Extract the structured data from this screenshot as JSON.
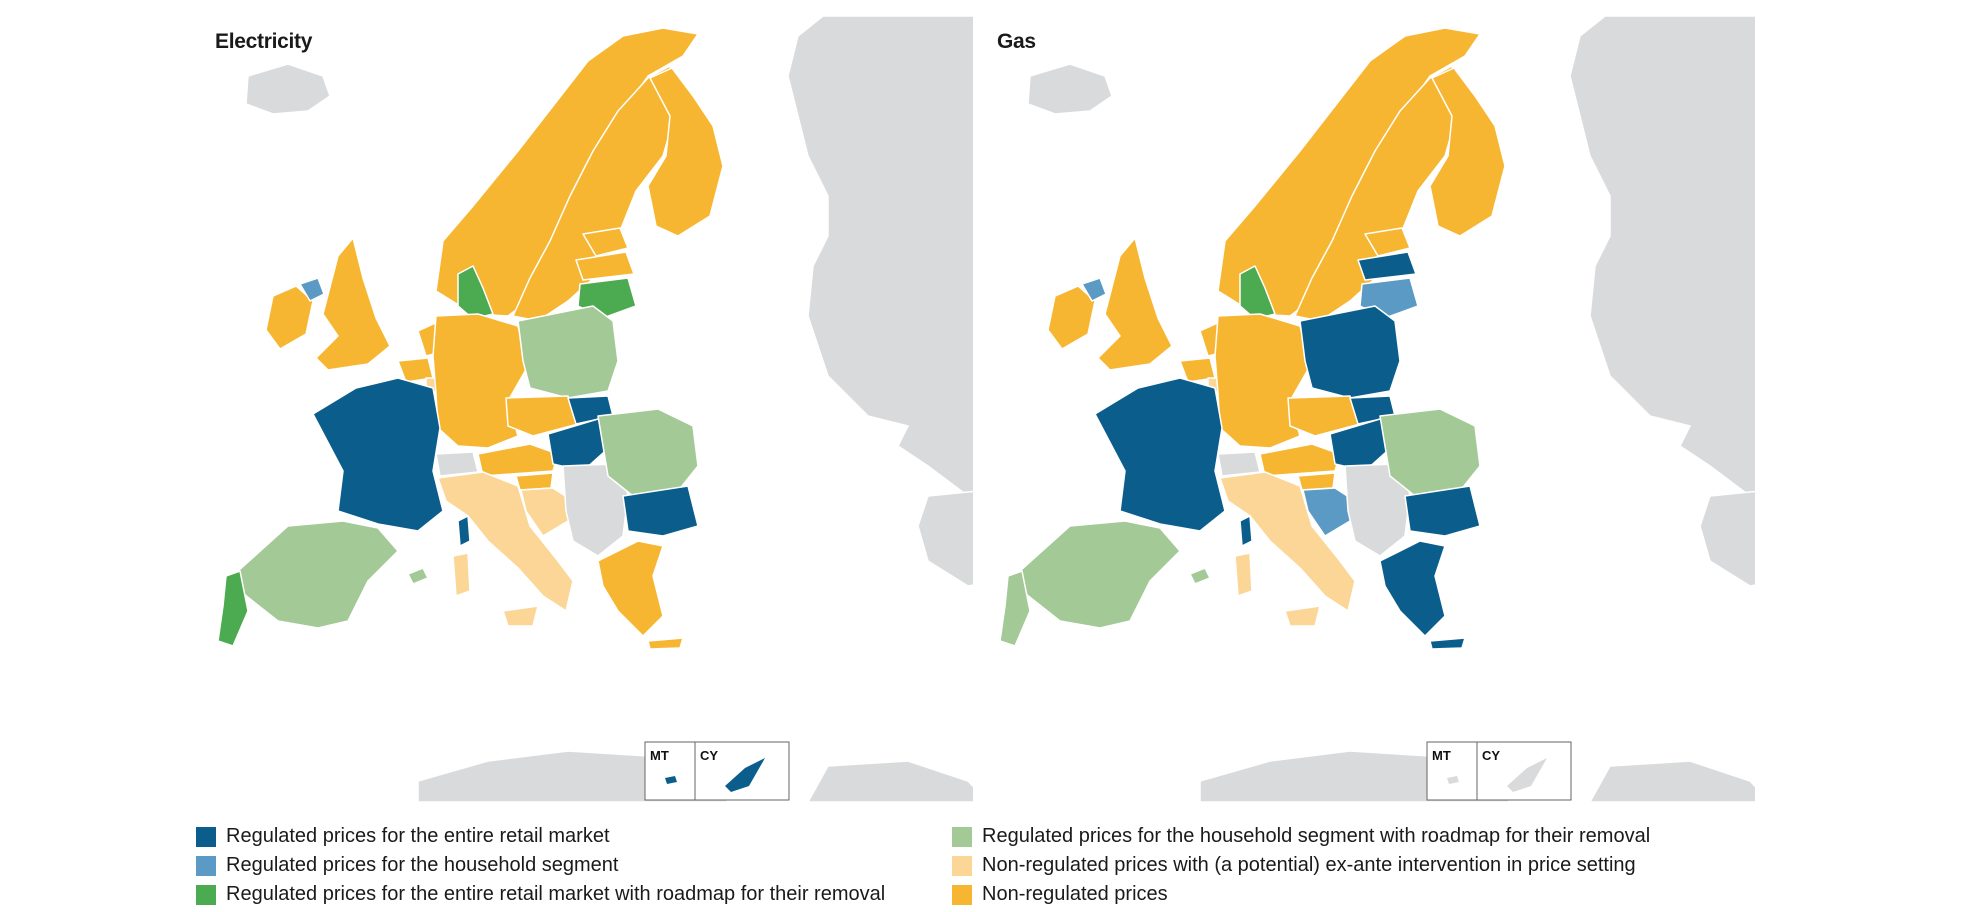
{
  "colors": {
    "regulated_entire": "#0b5e8c",
    "regulated_household": "#5b9ac4",
    "regulated_entire_roadmap": "#4caa50",
    "regulated_household_roadmap": "#a3c996",
    "non_regulated_exante": "#fbd697",
    "non_regulated": "#f7b631",
    "no_data": "#d9dadb",
    "border": "#ffffff",
    "sea": "#ffffff"
  },
  "maps": [
    {
      "title": "Electricity",
      "countries": {
        "IS": "no_data",
        "NO": "non_regulated",
        "SE": "non_regulated",
        "FI": "non_regulated",
        "EE": "non_regulated",
        "LV": "non_regulated",
        "LT": "regulated_entire_roadmap",
        "DK": "regulated_entire_roadmap",
        "IE": "non_regulated",
        "NIR": "regulated_household",
        "GB": "non_regulated",
        "NL": "non_regulated",
        "BE": "non_regulated",
        "LU": "non_regulated_exante",
        "DE": "non_regulated",
        "PL": "regulated_household_roadmap",
        "FR": "regulated_entire",
        "CH": "no_data",
        "AT": "non_regulated",
        "CZ": "non_regulated",
        "SK": "regulated_entire",
        "HU": "regulated_entire",
        "SI": "non_regulated",
        "HR": "non_regulated_exante",
        "RO": "regulated_household_roadmap",
        "BG": "regulated_entire",
        "GR": "non_regulated",
        "IT": "non_regulated_exante",
        "ES": "regulated_household_roadmap",
        "PT": "regulated_entire_roadmap",
        "COR": "regulated_entire",
        "SAR": "non_regulated_exante",
        "SIC": "non_regulated_exante",
        "BAL": "regulated_household_roadmap",
        "CRETE": "non_regulated",
        "BALKANS": "no_data"
      },
      "insets": [
        {
          "label": "MT",
          "status": "regulated_entire"
        },
        {
          "label": "CY",
          "status": "regulated_entire"
        }
      ]
    },
    {
      "title": "Gas",
      "countries": {
        "IS": "no_data",
        "NO": "non_regulated",
        "SE": "non_regulated",
        "FI": "non_regulated",
        "EE": "non_regulated",
        "LV": "regulated_entire",
        "LT": "regulated_household",
        "DK": "regulated_entire_roadmap",
        "IE": "non_regulated",
        "NIR": "regulated_household",
        "GB": "non_regulated",
        "NL": "non_regulated",
        "BE": "non_regulated",
        "LU": "non_regulated_exante",
        "DE": "non_regulated",
        "PL": "regulated_entire",
        "FR": "regulated_entire",
        "CH": "no_data",
        "AT": "non_regulated",
        "CZ": "non_regulated",
        "SK": "regulated_entire",
        "HU": "regulated_entire",
        "SI": "non_regulated",
        "HR": "regulated_household",
        "RO": "regulated_household_roadmap",
        "BG": "regulated_entire",
        "GR": "regulated_entire",
        "IT": "non_regulated_exante",
        "ES": "regulated_household_roadmap",
        "PT": "regulated_household_roadmap",
        "COR": "regulated_entire",
        "SAR": "non_regulated_exante",
        "SIC": "non_regulated_exante",
        "BAL": "regulated_household_roadmap",
        "CRETE": "regulated_entire",
        "BALKANS": "no_data"
      },
      "insets": [
        {
          "label": "MT",
          "status": "no_data"
        },
        {
          "label": "CY",
          "status": "no_data"
        }
      ]
    }
  ],
  "legend": {
    "left": [
      {
        "key": "regulated_entire",
        "label": "Regulated prices for the entire retail market"
      },
      {
        "key": "regulated_household",
        "label": "Regulated prices for the household segment"
      },
      {
        "key": "regulated_entire_roadmap",
        "label": "Regulated prices for the entire retail market with roadmap for their removal"
      }
    ],
    "right": [
      {
        "key": "regulated_household_roadmap",
        "label": "Regulated prices for the household segment with roadmap for their removal"
      },
      {
        "key": "non_regulated_exante",
        "label": "Non-regulated prices with (a potential) ex-ante intervention in price setting"
      },
      {
        "key": "non_regulated",
        "label": "Non-regulated prices"
      }
    ]
  }
}
